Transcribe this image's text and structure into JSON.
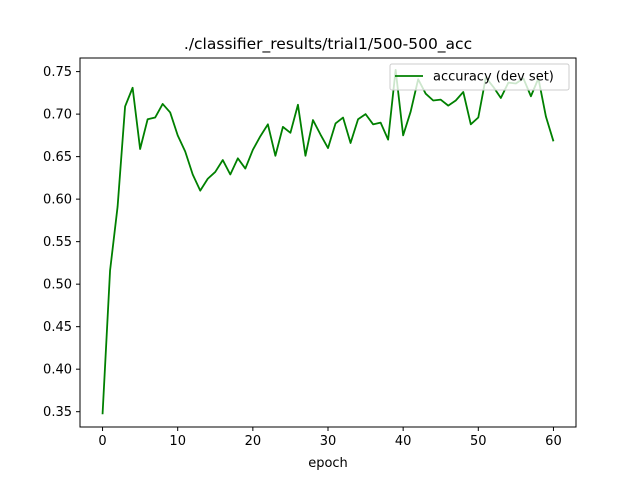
{
  "chart_data": {
    "type": "line",
    "title": "./classifier_results/trial1/500-500_acc",
    "xlabel": "epoch",
    "ylabel": "",
    "xlim": [
      -3,
      63
    ],
    "ylim": [
      0.332,
      0.766
    ],
    "xticks": [
      0,
      10,
      20,
      30,
      40,
      50,
      60
    ],
    "yticks": [
      0.35,
      0.4,
      0.45,
      0.5,
      0.55,
      0.6,
      0.65,
      0.7,
      0.75
    ],
    "grid": false,
    "legend_position": "top-right",
    "series": [
      {
        "name": "accuracy (dev set)",
        "color": "#008000",
        "x": [
          0,
          1,
          2,
          3,
          4,
          5,
          6,
          7,
          8,
          9,
          10,
          11,
          12,
          13,
          14,
          15,
          16,
          17,
          18,
          19,
          20,
          21,
          22,
          23,
          24,
          25,
          26,
          27,
          28,
          29,
          30,
          31,
          32,
          33,
          34,
          35,
          36,
          37,
          38,
          39,
          40,
          41,
          42,
          43,
          44,
          45,
          46,
          47,
          48,
          49,
          50,
          51,
          52,
          53,
          54,
          55,
          56,
          57,
          58,
          59,
          60
        ],
        "y": [
          0.347,
          0.516,
          0.591,
          0.709,
          0.731,
          0.659,
          0.694,
          0.696,
          0.712,
          0.702,
          0.675,
          0.656,
          0.629,
          0.61,
          0.624,
          0.632,
          0.646,
          0.629,
          0.648,
          0.636,
          0.658,
          0.674,
          0.688,
          0.651,
          0.685,
          0.678,
          0.711,
          0.651,
          0.693,
          0.676,
          0.66,
          0.689,
          0.696,
          0.666,
          0.694,
          0.7,
          0.688,
          0.69,
          0.67,
          0.752,
          0.675,
          0.703,
          0.741,
          0.724,
          0.716,
          0.717,
          0.71,
          0.716,
          0.726,
          0.688,
          0.696,
          0.743,
          0.732,
          0.719,
          0.737,
          0.736,
          0.742,
          0.721,
          0.742,
          0.697,
          0.668
        ]
      }
    ]
  }
}
